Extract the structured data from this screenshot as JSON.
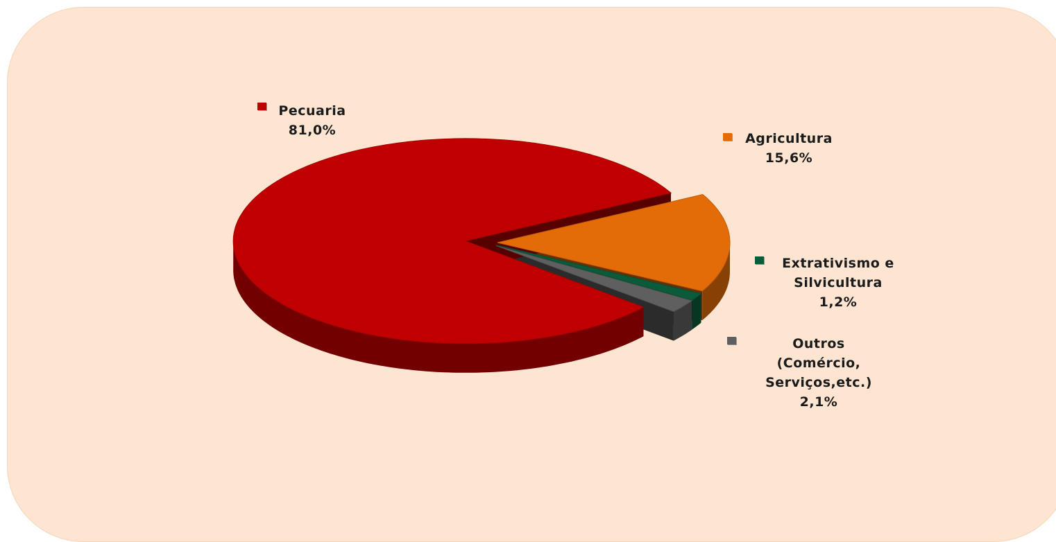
{
  "chart_data": {
    "type": "pie",
    "categories": [
      "Agricultura",
      "Extrativismo e Silvicultura",
      "Outros (Comércio, Serviços,etc.)",
      "Pecuaria"
    ],
    "values": [
      15.6,
      1.2,
      2.1,
      81.0
    ],
    "value_labels": [
      "15,6%",
      "1,2%",
      "2,1%",
      "81,0%"
    ],
    "colors": [
      "#e36c09",
      "#0b5a3a",
      "#5f5f5f",
      "#c00000"
    ]
  }
}
